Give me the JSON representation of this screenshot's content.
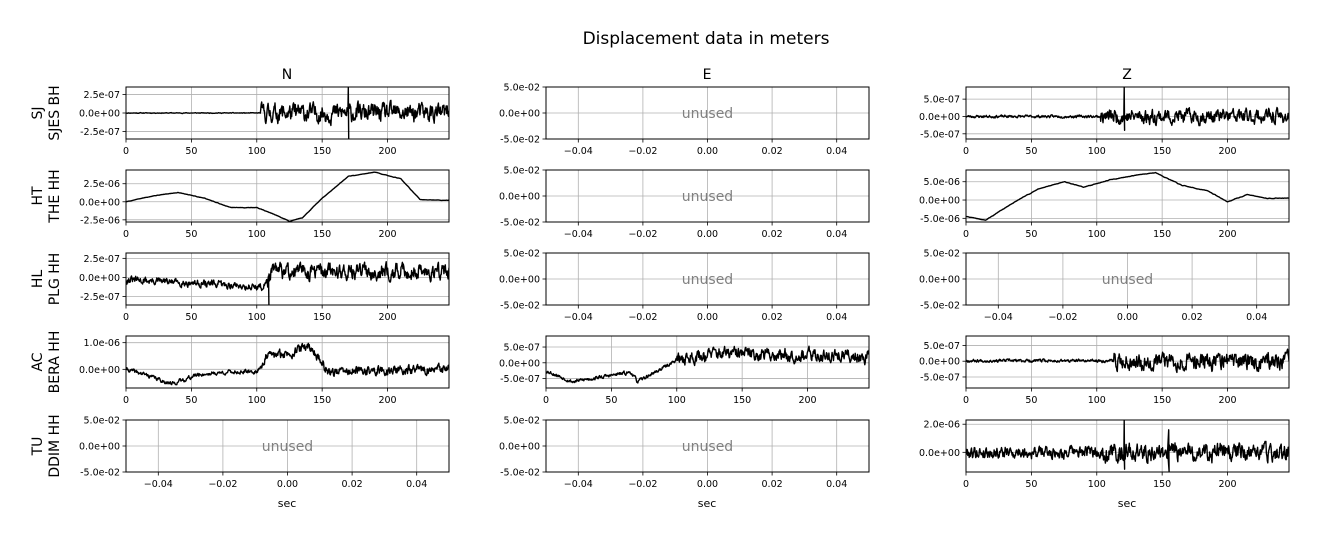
{
  "title": "Displacement data in meters",
  "column_titles": [
    "N",
    "E",
    "Z"
  ],
  "row_labels": [
    {
      "line1": "SJ",
      "line2": "SJES BH"
    },
    {
      "line1": "HT",
      "line2": "THE HH"
    },
    {
      "line1": "HL",
      "line2": "PLG HH"
    },
    {
      "line1": "AC",
      "line2": "BERA HH"
    },
    {
      "line1": "TU",
      "line2": "DDIM HH"
    }
  ],
  "xlabel": "sec",
  "unused_label": "unused",
  "colors": {
    "trace": "#000000",
    "grid": "#b0b0b0",
    "unused": "#808080",
    "axis": "#000000"
  },
  "chart_data": {
    "type": "line",
    "grid": true,
    "layout": "5x3 subplot grid (rows: stations, columns: components N, E, Z)",
    "panels": [
      {
        "row": 0,
        "col": 0,
        "station": "SJ SJES BH",
        "component": "N",
        "used": true,
        "xlim": [
          0,
          247
        ],
        "ylim": [
          -3.5e-07,
          3.5e-07
        ],
        "yticks": [
          -2.5e-07,
          0,
          2.5e-07
        ],
        "ytick_labels": [
          "-2.5e-07",
          "0.0e+00",
          "2.5e-07"
        ],
        "xticks": [
          0,
          50,
          100,
          150,
          200
        ],
        "xtick_labels": [
          "0",
          "50",
          "100",
          "150",
          "200"
        ],
        "series": {
          "style": "noise",
          "noise_pre": 5e-09,
          "noise_post": 1.3e-07,
          "onset": 103,
          "offset": [
            [
              0,
              0
            ]
          ],
          "seed": 11,
          "spike": [
            [
              170,
              -3.4e-07,
              3.4e-07
            ]
          ]
        }
      },
      {
        "row": 0,
        "col": 1,
        "station": "SJ SJES BH",
        "component": "E",
        "used": false,
        "xlim": [
          -0.05,
          0.05
        ],
        "ylim": [
          -0.05,
          0.05
        ],
        "yticks": [
          -0.05,
          0,
          0.05
        ],
        "ytick_labels": [
          "-5.0e-02",
          "0.0e+00",
          "5.0e-02"
        ],
        "xticks": [
          -0.04,
          -0.02,
          0,
          0.02,
          0.04
        ],
        "xtick_labels": [
          "−0.04",
          "−0.02",
          "0.00",
          "0.02",
          "0.04"
        ]
      },
      {
        "row": 0,
        "col": 2,
        "station": "SJ SJES BH",
        "component": "Z",
        "used": true,
        "xlim": [
          0,
          247
        ],
        "ylim": [
          -6.5e-07,
          8.5e-07
        ],
        "yticks": [
          -5e-07,
          0,
          5e-07
        ],
        "ytick_labels": [
          "-5.0e-07",
          "0.0e+00",
          "5.0e-07"
        ],
        "xticks": [
          0,
          50,
          100,
          150,
          200
        ],
        "xtick_labels": [
          "0",
          "50",
          "100",
          "150",
          "200"
        ],
        "series": {
          "style": "noise",
          "noise_pre": 4e-08,
          "noise_post": 2.2e-07,
          "onset": 103,
          "offset": [
            [
              0,
              0
            ]
          ],
          "seed": 23,
          "spike": [
            [
              121,
              -4e-07,
              8.4e-07
            ]
          ]
        }
      },
      {
        "row": 1,
        "col": 0,
        "station": "HT THE HH",
        "component": "N",
        "used": true,
        "xlim": [
          0,
          247
        ],
        "ylim": [
          -2.8e-06,
          4.4e-06
        ],
        "yticks": [
          -2.5e-06,
          0,
          2.5e-06
        ],
        "ytick_labels": [
          "-2.5e-06",
          "0.0e+00",
          "2.5e-06"
        ],
        "xticks": [
          0,
          50,
          100,
          150,
          200
        ],
        "xtick_labels": [
          "0",
          "50",
          "100",
          "150",
          "200"
        ],
        "series": {
          "style": "smooth",
          "noise_pre": 6e-08,
          "noise_post": 6e-08,
          "onset": 0,
          "seed": 5,
          "offset": [
            [
              0,
              0
            ],
            [
              20,
              8e-07
            ],
            [
              40,
              1.3e-06
            ],
            [
              60,
              5e-07
            ],
            [
              80,
              -8e-07
            ],
            [
              100,
              -8e-07
            ],
            [
              110,
              -1.5e-06
            ],
            [
              125,
              -2.7e-06
            ],
            [
              135,
              -2.2e-06
            ],
            [
              150,
              5e-07
            ],
            [
              170,
              3.5e-06
            ],
            [
              190,
              4.1e-06
            ],
            [
              210,
              3.2e-06
            ],
            [
              225,
              3e-07
            ],
            [
              247,
              2e-07
            ]
          ]
        }
      },
      {
        "row": 1,
        "col": 1,
        "station": "HT THE HH",
        "component": "E",
        "used": false,
        "xlim": [
          -0.05,
          0.05
        ],
        "ylim": [
          -0.05,
          0.05
        ],
        "yticks": [
          -0.05,
          0,
          0.05
        ],
        "ytick_labels": [
          "-5.0e-02",
          "0.0e+00",
          "5.0e-02"
        ],
        "xticks": [
          -0.04,
          -0.02,
          0,
          0.02,
          0.04
        ],
        "xtick_labels": [
          "−0.04",
          "−0.02",
          "0.00",
          "0.02",
          "0.04"
        ]
      },
      {
        "row": 1,
        "col": 2,
        "station": "HT THE HH",
        "component": "Z",
        "used": true,
        "xlim": [
          0,
          247
        ],
        "ylim": [
          -6e-06,
          8.2e-06
        ],
        "yticks": [
          -5e-06,
          0,
          5e-06
        ],
        "ytick_labels": [
          "-5.0e-06",
          "0.0e+00",
          "5.0e-06"
        ],
        "xticks": [
          0,
          50,
          100,
          150,
          200
        ],
        "xtick_labels": [
          "0",
          "50",
          "100",
          "150",
          "200"
        ],
        "series": {
          "style": "smooth",
          "noise_pre": 1.5e-07,
          "noise_post": 1.5e-07,
          "onset": 0,
          "seed": 7,
          "offset": [
            [
              0,
              -4.5e-06
            ],
            [
              15,
              -5.5e-06
            ],
            [
              35,
              -1e-06
            ],
            [
              55,
              3e-06
            ],
            [
              75,
              5e-06
            ],
            [
              90,
              3.5e-06
            ],
            [
              110,
              5.5e-06
            ],
            [
              130,
              6.8e-06
            ],
            [
              145,
              7.5e-06
            ],
            [
              165,
              4e-06
            ],
            [
              185,
              2.5e-06
            ],
            [
              200,
              -5e-07
            ],
            [
              215,
              1.5e-06
            ],
            [
              230,
              5e-07
            ],
            [
              247,
              5e-07
            ]
          ]
        }
      },
      {
        "row": 2,
        "col": 0,
        "station": "HL PLG HH",
        "component": "N",
        "used": true,
        "xlim": [
          0,
          247
        ],
        "ylim": [
          -3.6e-07,
          3.2e-07
        ],
        "yticks": [
          -2.5e-07,
          0,
          2.5e-07
        ],
        "ytick_labels": [
          "-2.5e-07",
          "0.0e+00",
          "2.5e-07"
        ],
        "xticks": [
          0,
          50,
          100,
          150,
          200
        ],
        "xtick_labels": [
          "0",
          "50",
          "100",
          "150",
          "200"
        ],
        "series": {
          "style": "noise",
          "noise_pre": 5e-08,
          "noise_post": 1.1e-07,
          "onset": 108,
          "seed": 31,
          "offset": [
            [
              0,
              -3e-08
            ],
            [
              60,
              -8e-08
            ],
            [
              105,
              -1.3e-07
            ],
            [
              112,
              8e-08
            ],
            [
              247,
              8e-08
            ]
          ],
          "spike": [
            [
              109,
              -3.5e-07,
              2e-08
            ]
          ]
        }
      },
      {
        "row": 2,
        "col": 1,
        "station": "HL PLG HH",
        "component": "E",
        "used": false,
        "xlim": [
          -0.05,
          0.05
        ],
        "ylim": [
          -0.05,
          0.05
        ],
        "yticks": [
          -0.05,
          0,
          0.05
        ],
        "ytick_labels": [
          "-5.0e-02",
          "0.0e+00",
          "5.0e-02"
        ],
        "xticks": [
          -0.04,
          -0.02,
          0,
          0.02,
          0.04
        ],
        "xtick_labels": [
          "−0.04",
          "−0.02",
          "0.00",
          "0.02",
          "0.04"
        ]
      },
      {
        "row": 2,
        "col": 2,
        "station": "HL PLG HH",
        "component": "Z",
        "used": false,
        "xlim": [
          -0.05,
          0.05
        ],
        "ylim": [
          -0.05,
          0.05
        ],
        "yticks": [
          -0.05,
          0,
          0.05
        ],
        "ytick_labels": [
          "-5.0e-02",
          "0.0e+00",
          "5.0e-02"
        ],
        "xticks": [
          -0.04,
          -0.02,
          0,
          0.02,
          0.04
        ],
        "xtick_labels": [
          "−0.04",
          "−0.02",
          "0.00",
          "0.02",
          "0.04"
        ]
      },
      {
        "row": 3,
        "col": 0,
        "station": "AC BERA HH",
        "component": "N",
        "used": true,
        "xlim": [
          0,
          247
        ],
        "ylim": [
          -7e-07,
          1.25e-06
        ],
        "yticks": [
          0,
          1e-06
        ],
        "ytick_labels": [
          "0.0e+00",
          "1.0e-06"
        ],
        "xticks": [
          0,
          50,
          100,
          150,
          200
        ],
        "xtick_labels": [
          "0",
          "50",
          "100",
          "150",
          "200"
        ],
        "series": {
          "style": "noise",
          "noise_pre": 8e-08,
          "noise_post": 1.8e-07,
          "onset": 103,
          "seed": 41,
          "offset": [
            [
              0,
              0
            ],
            [
              15,
              -2e-07
            ],
            [
              35,
              -5.5e-07
            ],
            [
              55,
              -2e-07
            ],
            [
              80,
              -1e-07
            ],
            [
              100,
              -1e-07
            ],
            [
              108,
              5e-07
            ],
            [
              125,
              6e-07
            ],
            [
              140,
              9e-07
            ],
            [
              155,
              -1e-07
            ],
            [
              247,
              0
            ]
          ]
        }
      },
      {
        "row": 3,
        "col": 1,
        "station": "AC BERA HH",
        "component": "E",
        "used": true,
        "xlim": [
          0,
          247
        ],
        "ylim": [
          -8e-07,
          8.5e-07
        ],
        "yticks": [
          -5e-07,
          0,
          5e-07
        ],
        "ytick_labels": [
          "-5.0e-07",
          "0.0e+00",
          "5.0e-07"
        ],
        "xticks": [
          0,
          50,
          100,
          150,
          200
        ],
        "xtick_labels": [
          "0",
          "50",
          "100",
          "150",
          "200"
        ],
        "series": {
          "style": "noise",
          "noise_pre": 6e-08,
          "noise_post": 2.2e-07,
          "onset": 100,
          "seed": 53,
          "offset": [
            [
              0,
              -2.5e-07
            ],
            [
              20,
              -6e-07
            ],
            [
              50,
              -4e-07
            ],
            [
              65,
              -3e-07
            ],
            [
              70,
              -6e-07
            ],
            [
              90,
              -1.5e-07
            ],
            [
              100,
              1e-07
            ],
            [
              130,
              3e-07
            ],
            [
              247,
              2e-07
            ]
          ]
        }
      },
      {
        "row": 3,
        "col": 2,
        "station": "AC BERA HH",
        "component": "Z",
        "used": true,
        "xlim": [
          0,
          247
        ],
        "ylim": [
          -8.5e-07,
          8e-07
        ],
        "yticks": [
          -5e-07,
          0,
          5e-07
        ],
        "ytick_labels": [
          "-5.0e-07",
          "0.0e+00",
          "5.0e-07"
        ],
        "xticks": [
          0,
          50,
          100,
          150,
          200
        ],
        "xtick_labels": [
          "0",
          "50",
          "100",
          "150",
          "200"
        ],
        "series": {
          "style": "noise",
          "noise_pre": 5e-08,
          "noise_post": 2.8e-07,
          "onset": 113,
          "seed": 67,
          "offset": [
            [
              0,
              2e-08
            ],
            [
              247,
              0
            ]
          ]
        }
      },
      {
        "row": 4,
        "col": 0,
        "station": "TU DDIM HH",
        "component": "N",
        "used": false,
        "xlim": [
          -0.05,
          0.05
        ],
        "ylim": [
          -0.05,
          0.05
        ],
        "yticks": [
          -0.05,
          0,
          0.05
        ],
        "ytick_labels": [
          "-5.0e-02",
          "0.0e+00",
          "5.0e-02"
        ],
        "xticks": [
          -0.04,
          -0.02,
          0,
          0.02,
          0.04
        ],
        "xtick_labels": [
          "−0.04",
          "−0.02",
          "0.00",
          "0.02",
          "0.04"
        ]
      },
      {
        "row": 4,
        "col": 1,
        "station": "TU DDIM HH",
        "component": "E",
        "used": false,
        "xlim": [
          -0.05,
          0.05
        ],
        "ylim": [
          -0.05,
          0.05
        ],
        "yticks": [
          -0.05,
          0,
          0.05
        ],
        "ytick_labels": [
          "-5.0e-02",
          "0.0e+00",
          "5.0e-02"
        ],
        "xticks": [
          -0.04,
          -0.02,
          0,
          0.02,
          0.04
        ],
        "xtick_labels": [
          "−0.04",
          "−0.02",
          "0.00",
          "0.02",
          "0.04"
        ]
      },
      {
        "row": 4,
        "col": 2,
        "station": "TU DDIM HH",
        "component": "Z",
        "used": true,
        "xlim": [
          0,
          247
        ],
        "ylim": [
          -1.4e-06,
          2.3e-06
        ],
        "yticks": [
          0,
          2e-06
        ],
        "ytick_labels": [
          "0.0e+00",
          "2.0e-06"
        ],
        "xticks": [
          0,
          50,
          100,
          150,
          200
        ],
        "xtick_labels": [
          "0",
          "50",
          "100",
          "150",
          "200"
        ],
        "series": {
          "style": "noise",
          "noise_pre": 4.5e-07,
          "noise_post": 7e-07,
          "onset": 103,
          "seed": 79,
          "offset": [
            [
              0,
              0
            ],
            [
              247,
              0
            ]
          ],
          "spike": [
            [
              121,
              -1.2e-06,
              2.25e-06
            ],
            [
              155,
              -1.35e-06,
              1.6e-06
            ]
          ]
        }
      }
    ]
  }
}
